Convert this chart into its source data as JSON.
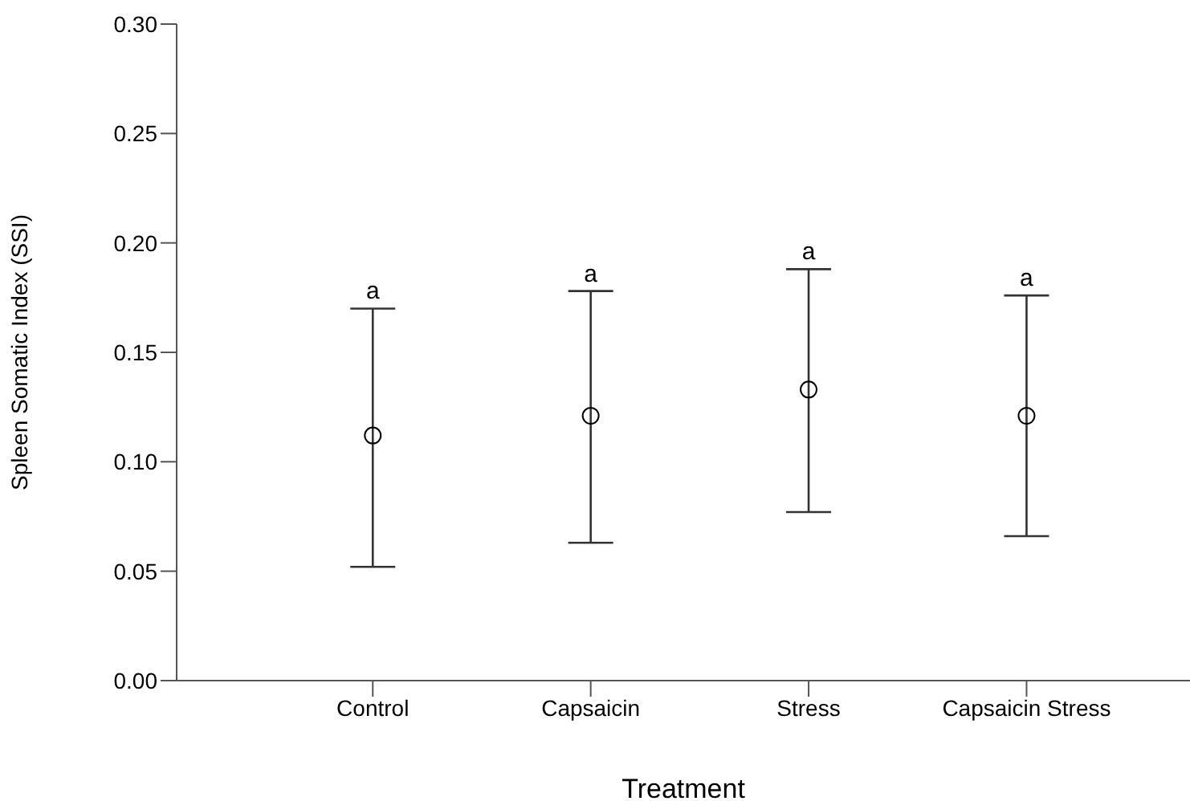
{
  "chart_data": {
    "type": "scatter",
    "xlabel": "Treatment",
    "ylabel": "Spleen Somatic Index (SSI)",
    "categories": [
      "Control",
      "Capsaicin",
      "Stress",
      "Capsaicin Stress"
    ],
    "values": [
      0.112,
      0.121,
      0.133,
      0.121
    ],
    "errors": [
      [
        0.052,
        0.17
      ],
      [
        0.063,
        0.178
      ],
      [
        0.077,
        0.188
      ],
      [
        0.066,
        0.176
      ]
    ],
    "color": "#000000",
    "marker": "circle",
    "grid": false,
    "legend": false,
    "ylim": [
      0,
      0.3
    ],
    "yticks": [
      {
        "value": 0,
        "label": "0.00"
      },
      {
        "value": 0.05,
        "label": "0.05"
      },
      {
        "value": 0.1,
        "label": "0.10"
      },
      {
        "value": 0.15,
        "label": "0.15"
      },
      {
        "value": 0.2,
        "label": "0.20"
      },
      {
        "value": 0.25,
        "label": "0.25"
      },
      {
        "value": 0.3,
        "label": "0.30"
      }
    ],
    "annotations": [
      {
        "text": "a",
        "x": "Control",
        "y": 0.17
      },
      {
        "text": "a",
        "x": "Capsaicin",
        "y": 0.178
      },
      {
        "text": "a",
        "x": "Stress",
        "y": 0.188
      },
      {
        "text": "a",
        "x": "Capsaicin Stress",
        "y": 0.176
      }
    ]
  }
}
